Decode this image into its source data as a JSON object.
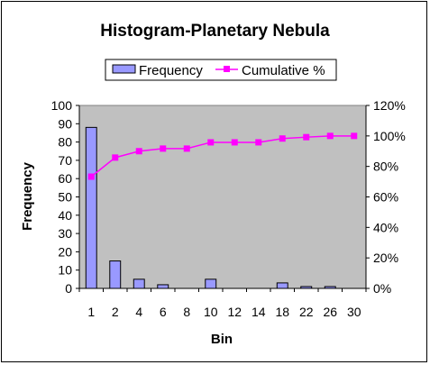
{
  "chart_data": {
    "type": "bar",
    "title": "Histogram-Planetary Nebula",
    "xlabel": "Bin",
    "ylabel": "Frequency",
    "categories": [
      "1",
      "2",
      "4",
      "6",
      "8",
      "10",
      "12",
      "14",
      "18",
      "22",
      "26",
      "30"
    ],
    "series": [
      {
        "name": "Frequency",
        "type": "bar",
        "axis": "left",
        "values": [
          88,
          15,
          5,
          2,
          0,
          5,
          0,
          0,
          3,
          1,
          1,
          0
        ],
        "color": "#9999ff"
      },
      {
        "name": "Cumulative %",
        "type": "line",
        "axis": "right",
        "values": [
          73.3,
          85.8,
          90.0,
          91.7,
          91.7,
          95.8,
          95.8,
          95.8,
          98.3,
          99.2,
          100.0,
          100.0
        ],
        "color": "#ff00ff"
      }
    ],
    "ylim": [
      0,
      100
    ],
    "yticks": [
      "0",
      "10",
      "20",
      "30",
      "40",
      "50",
      "60",
      "70",
      "80",
      "90",
      "100"
    ],
    "y2lim": [
      0,
      120
    ],
    "y2ticks": [
      "0%",
      "20%",
      "40%",
      "60%",
      "80%",
      "100%",
      "120%"
    ],
    "legend_position": "top",
    "grid": false,
    "plot_background": "#c0c0c0"
  }
}
